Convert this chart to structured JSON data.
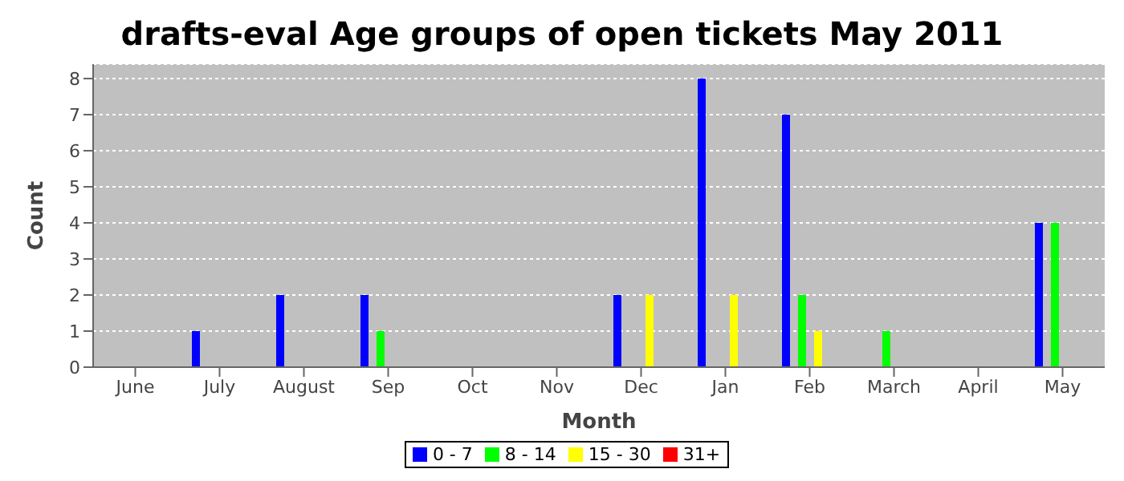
{
  "chart_data": {
    "type": "bar",
    "title": "drafts-eval Age groups of open tickets May 2011",
    "xlabel": "Month",
    "ylabel": "Count",
    "categories": [
      "June",
      "July",
      "August",
      "Sep",
      "Oct",
      "Nov",
      "Dec",
      "Jan",
      "Feb",
      "March",
      "April",
      "May"
    ],
    "series": [
      {
        "name": "0 - 7",
        "color": "#0000ff",
        "values": [
          0,
          1,
          2,
          2,
          0,
          0,
          2,
          8,
          7,
          0,
          0,
          4
        ]
      },
      {
        "name": "8 - 14",
        "color": "#00ff00",
        "values": [
          0,
          0,
          0,
          1,
          0,
          0,
          0,
          0,
          2,
          1,
          0,
          4
        ]
      },
      {
        "name": "15 - 30",
        "color": "#ffff00",
        "values": [
          0,
          0,
          0,
          0,
          0,
          0,
          2,
          2,
          1,
          0,
          0,
          0
        ]
      },
      {
        "name": "31+",
        "color": "#ff0000",
        "values": [
          0,
          0,
          0,
          0,
          0,
          0,
          0,
          0,
          0,
          0,
          0,
          0
        ]
      }
    ],
    "ylim": [
      0,
      8.4
    ],
    "yticks": [
      0,
      1,
      2,
      3,
      4,
      5,
      6,
      7,
      8
    ],
    "grid": "y",
    "legend": "bottom"
  }
}
